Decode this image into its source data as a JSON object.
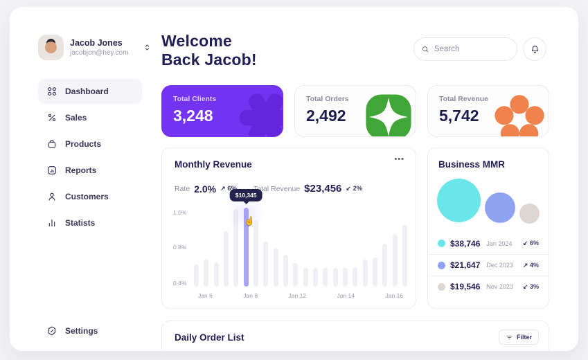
{
  "profile": {
    "name": "Jacob Jones",
    "email": "jacobjon@hey.com"
  },
  "sidebar": {
    "items": [
      {
        "label": "Dashboard",
        "icon": "grid-icon",
        "active": true
      },
      {
        "label": "Sales",
        "icon": "percent-icon",
        "active": false
      },
      {
        "label": "Products",
        "icon": "bag-icon",
        "active": false
      },
      {
        "label": "Reports",
        "icon": "report-chart-icon",
        "active": false
      },
      {
        "label": "Customers",
        "icon": "person-icon",
        "active": false
      },
      {
        "label": "Statists",
        "icon": "bar-chart-icon",
        "active": false
      }
    ],
    "settings_label": "Settings"
  },
  "header": {
    "welcome_line1": "Welcome",
    "welcome_line2": "Back Jacob!",
    "search_placeholder": "Search"
  },
  "stat_cards": [
    {
      "label": "Total Clients",
      "value": "3,248",
      "theme": "purple",
      "accent": "#7433f0"
    },
    {
      "label": "Total Orders",
      "value": "2,492",
      "theme": "green",
      "accent": "#3fa637"
    },
    {
      "label": "Total Revenue",
      "value": "5,742",
      "theme": "orange",
      "accent": "#f0834b"
    }
  ],
  "monthly_revenue": {
    "title": "Monthly Revenue",
    "menu_icon": "•••",
    "rate_label": "Rate",
    "rate_value": "2.0%",
    "rate_change_arrow": "↗",
    "rate_change": "6%",
    "total_label": "Total Revenue",
    "total_value": "$23,456",
    "total_change_arrow": "↙",
    "total_change": "2%"
  },
  "business_mmr": {
    "title": "Business MMR",
    "items": [
      {
        "value": "$38,746",
        "period": "Jan 2024",
        "change_arrow": "↙",
        "change": "6%",
        "color": "#6be6e8"
      },
      {
        "value": "$21,647",
        "period": "Dec 2023",
        "change_arrow": "↗",
        "change": "4%",
        "color": "#8fa3f2"
      },
      {
        "value": "$19,546",
        "period": "Nov 2023",
        "change_arrow": "↙",
        "change": "3%",
        "color": "#ded6d0"
      }
    ]
  },
  "daily_orders": {
    "title": "Daily Order List",
    "filter_label": "Filter"
  },
  "chart_data": {
    "type": "bar",
    "title": "Monthly Revenue",
    "x_ticks": [
      "Jan 6",
      "Jan 8",
      "Jan 12",
      "Jan 14",
      "Jan 16"
    ],
    "y_ticks": [
      "1.0%",
      "0.8%",
      "0.4%"
    ],
    "ylim": [
      0,
      1
    ],
    "values": [
      0.28,
      0.34,
      0.31,
      0.7,
      0.98,
      1.0,
      0.84,
      0.57,
      0.48,
      0.4,
      0.3,
      0.24,
      0.24,
      0.24,
      0.24,
      0.24,
      0.25,
      0.34,
      0.37,
      0.54,
      0.67,
      0.78
    ],
    "highlight_index": 5,
    "highlight_label": "$10,345",
    "bar_color": "#f0eff4",
    "highlight_color": "#a9a5f7",
    "grid": false,
    "legend": false
  }
}
